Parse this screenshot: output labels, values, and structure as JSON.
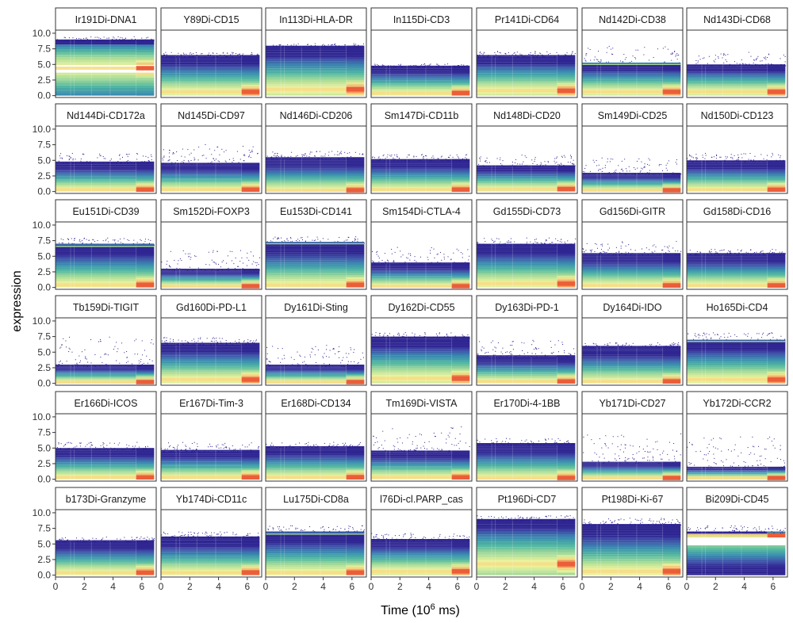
{
  "chart_data": {
    "type": "heatmap",
    "description_kind": "faceted density plot of expression over time",
    "xlabel": "Time (10",
    "xlabel_sup": "6",
    "xlabel_tail": " ms)",
    "ylabel": "expression",
    "xlim": [
      0,
      7
    ],
    "ylim": [
      -0.3,
      10.5
    ],
    "x_ticks": [
      0,
      2,
      4,
      6
    ],
    "x_tick_labels": [
      "0",
      "2",
      "4",
      "6"
    ],
    "y_ticks": [
      0,
      2.5,
      5,
      7.5,
      10
    ],
    "y_tick_labels": [
      "0.0",
      "2.5",
      "5.0",
      "7.5",
      "10.0"
    ],
    "grid": false,
    "facet_layout": {
      "rows": 6,
      "cols": 7
    },
    "colormap": [
      "#2c1e8e",
      "#3f4fa8",
      "#3a8bb0",
      "#50b7a1",
      "#a4da98",
      "#e9f29b",
      "#fbd681",
      "#f6894f",
      "#e2412b"
    ],
    "panels": [
      {
        "name": "Ir191Di-DNA1",
        "band_top": 9.0,
        "band_bottom": 0.0,
        "hot_level": 4.4,
        "outlier_max": 9.5,
        "gap": [
          3.8,
          4.6
        ]
      },
      {
        "name": "Y89Di-CD15",
        "band_top": 6.5,
        "band_bottom": 0.0,
        "hot_level": 0.6,
        "outlier_max": 7.0
      },
      {
        "name": "In113Di-HLA-DR",
        "band_top": 8.0,
        "band_bottom": 0.0,
        "hot_level": 1.0,
        "outlier_max": 8.4
      },
      {
        "name": "In115Di-CD3",
        "band_top": 4.8,
        "band_bottom": 0.0,
        "hot_level": 0.4,
        "outlier_max": 5.2
      },
      {
        "name": "Pr141Di-CD64",
        "band_top": 6.5,
        "band_bottom": 0.0,
        "hot_level": 0.8,
        "outlier_max": 7.2
      },
      {
        "name": "Nd142Di-CD38",
        "band_top": 5.2,
        "band_bottom": 0.0,
        "hot_level": 0.6,
        "outlier_max": 8.0,
        "line": 5.0
      },
      {
        "name": "Nd143Di-CD68",
        "band_top": 5.0,
        "band_bottom": 0.0,
        "hot_level": 0.6,
        "outlier_max": 7.2
      },
      {
        "name": "Nd144Di-CD172a",
        "band_top": 4.8,
        "band_bottom": 0.0,
        "hot_level": 0.3,
        "outlier_max": 6.2
      },
      {
        "name": "Nd145Di-CD97",
        "band_top": 4.6,
        "band_bottom": 0.0,
        "hot_level": 0.3,
        "outlier_max": 7.6
      },
      {
        "name": "Nd146Di-CD206",
        "band_top": 5.5,
        "band_bottom": 0.0,
        "hot_level": 0.2,
        "outlier_max": 6.5
      },
      {
        "name": "Sm147Di-CD11b",
        "band_top": 5.2,
        "band_bottom": 0.0,
        "hot_level": 0.3,
        "outlier_max": 6.0
      },
      {
        "name": "Nd148Di-CD20",
        "band_top": 4.2,
        "band_bottom": 0.0,
        "hot_level": 0.4,
        "outlier_max": 6.0
      },
      {
        "name": "Sm149Di-CD25",
        "band_top": 3.0,
        "band_bottom": 0.0,
        "hot_level": 0.2,
        "outlier_max": 5.5
      },
      {
        "name": "Nd150Di-CD123",
        "band_top": 5.0,
        "band_bottom": 0.0,
        "hot_level": 0.3,
        "outlier_max": 6.2
      },
      {
        "name": "Eu151Di-CD39",
        "band_top": 7.0,
        "band_bottom": 0.0,
        "hot_level": 0.4,
        "outlier_max": 8.0,
        "line": 6.6
      },
      {
        "name": "Sm152Di-FOXP3",
        "band_top": 3.0,
        "band_bottom": 0.0,
        "hot_level": 0.2,
        "outlier_max": 6.0
      },
      {
        "name": "Eu153Di-CD141",
        "band_top": 7.3,
        "band_bottom": 0.0,
        "hot_level": 0.4,
        "outlier_max": 8.2,
        "line": 7.0
      },
      {
        "name": "Sm154Di-CTLA-4",
        "band_top": 4.0,
        "band_bottom": 0.0,
        "hot_level": 0.2,
        "outlier_max": 6.5
      },
      {
        "name": "Gd155Di-CD73",
        "band_top": 7.0,
        "band_bottom": 0.0,
        "hot_level": 0.6,
        "outlier_max": 8.0
      },
      {
        "name": "Gd156Di-GITR",
        "band_top": 5.5,
        "band_bottom": 0.0,
        "hot_level": 0.3,
        "outlier_max": 7.5
      },
      {
        "name": "Gd158Di-CD16",
        "band_top": 5.5,
        "band_bottom": 0.0,
        "hot_level": 0.3,
        "outlier_max": 6.2
      },
      {
        "name": "Tb159Di-TIGIT",
        "band_top": 3.0,
        "band_bottom": 0.0,
        "hot_level": 0.2,
        "outlier_max": 7.5
      },
      {
        "name": "Gd160Di-PD-L1",
        "band_top": 6.5,
        "band_bottom": 0.0,
        "hot_level": 0.6,
        "outlier_max": 7.4
      },
      {
        "name": "Dy161Di-Sting",
        "band_top": 3.0,
        "band_bottom": 0.0,
        "hot_level": 0.2,
        "outlier_max": 6.2
      },
      {
        "name": "Dy162Di-CD55",
        "band_top": 7.5,
        "band_bottom": 0.0,
        "hot_level": 0.8,
        "outlier_max": 8.2
      },
      {
        "name": "Dy163Di-PD-1",
        "band_top": 4.5,
        "band_bottom": 0.0,
        "hot_level": 0.3,
        "outlier_max": 7.0
      },
      {
        "name": "Dy164Di-IDO",
        "band_top": 6.0,
        "band_bottom": 0.0,
        "hot_level": 0.3,
        "outlier_max": 6.6
      },
      {
        "name": "Ho165Di-CD4",
        "band_top": 7.0,
        "band_bottom": 0.0,
        "hot_level": 0.6,
        "outlier_max": 8.2,
        "line": 6.7
      },
      {
        "name": "Er166Di-ICOS",
        "band_top": 5.0,
        "band_bottom": 0.0,
        "hot_level": 0.3,
        "outlier_max": 6.0
      },
      {
        "name": "Er167Di-Tim-3",
        "band_top": 4.7,
        "band_bottom": 0.0,
        "hot_level": 0.3,
        "outlier_max": 6.0
      },
      {
        "name": "Er168Di-CD134",
        "band_top": 5.3,
        "band_bottom": 0.0,
        "hot_level": 0.3,
        "outlier_max": 6.0
      },
      {
        "name": "Tm169Di-VISTA",
        "band_top": 4.6,
        "band_bottom": 0.0,
        "hot_level": 0.3,
        "outlier_max": 8.6
      },
      {
        "name": "Er170Di-4-1BB",
        "band_top": 5.8,
        "band_bottom": 0.0,
        "hot_level": 0.2,
        "outlier_max": 6.6
      },
      {
        "name": "Yb171Di-CD27",
        "band_top": 2.8,
        "band_bottom": 0.0,
        "hot_level": 0.2,
        "outlier_max": 7.5
      },
      {
        "name": "Yb172Di-CCR2",
        "band_top": 2.0,
        "band_bottom": 0.0,
        "hot_level": 0.2,
        "outlier_max": 7.0
      },
      {
        "name": "b173Di-Granzyme",
        "band_top": 5.6,
        "band_bottom": 0.0,
        "hot_level": 0.4,
        "outlier_max": 6.2
      },
      {
        "name": "Yb174Di-CD11c",
        "band_top": 6.2,
        "band_bottom": 0.0,
        "hot_level": 0.4,
        "outlier_max": 7.0
      },
      {
        "name": "Lu175Di-CD8a",
        "band_top": 7.0,
        "band_bottom": 0.0,
        "hot_level": 0.4,
        "outlier_max": 8.0,
        "line": 6.6
      },
      {
        "name": "l76Di-cl.PARP_cas",
        "band_top": 5.8,
        "band_bottom": 0.0,
        "hot_level": 0.6,
        "outlier_max": 6.8
      },
      {
        "name": "Pt196Di-CD7",
        "band_top": 9.0,
        "band_bottom": 0.0,
        "hot_level": 1.8,
        "outlier_max": 9.6
      },
      {
        "name": "Pt198Di-Ki-67",
        "band_top": 8.2,
        "band_bottom": 0.0,
        "hot_level": 0.6,
        "outlier_max": 9.2
      },
      {
        "name": "Bi209Di-CD45",
        "band_top": 7.0,
        "band_bottom": 0.0,
        "hot_level": 6.4,
        "outlier_max": 8.0,
        "gap": [
          5.0,
          5.8
        ]
      }
    ]
  }
}
